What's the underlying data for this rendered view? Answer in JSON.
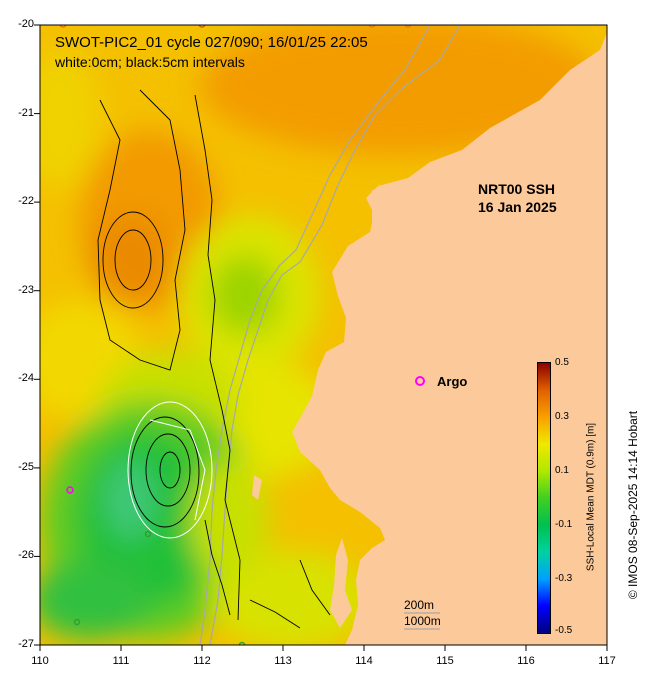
{
  "title": {
    "line1": "SWOT-PIC2_01 cycle 027/090; 16/01/25 22:05",
    "line2": "white:0cm; black:5cm intervals"
  },
  "product_label": {
    "line1": "NRT00 SSH",
    "line2": "16 Jan 2025"
  },
  "argo": {
    "label": "Argo",
    "marker_color": "#ff00ff"
  },
  "depth_contours": {
    "label_200": "200m",
    "label_1000": "1000m"
  },
  "axes": {
    "y_ticks": [
      "-20",
      "-21",
      "-22",
      "-23",
      "-24",
      "-25",
      "-26",
      "-27"
    ],
    "x_ticks": [
      "110",
      "111",
      "112",
      "113",
      "114",
      "115",
      "116",
      "117"
    ],
    "lat_range": [
      -27,
      -20
    ],
    "lon_range": [
      110,
      117
    ]
  },
  "colorbar": {
    "title": "SSH-Local Mean MDT (0.9m) [m]",
    "ticks": [
      "0.5",
      "0.3",
      "0.1",
      "-0.1",
      "-0.3",
      "-0.5"
    ],
    "range": [
      -0.5,
      0.5
    ]
  },
  "credit": "© IMOS 08-Sep-2025 14:14 Hobart",
  "colors": {
    "land": "#fcc99a",
    "ocean_orange": "#f7b200",
    "ocean_yellow": "#f4e200",
    "ocean_green": "#18c43c"
  }
}
